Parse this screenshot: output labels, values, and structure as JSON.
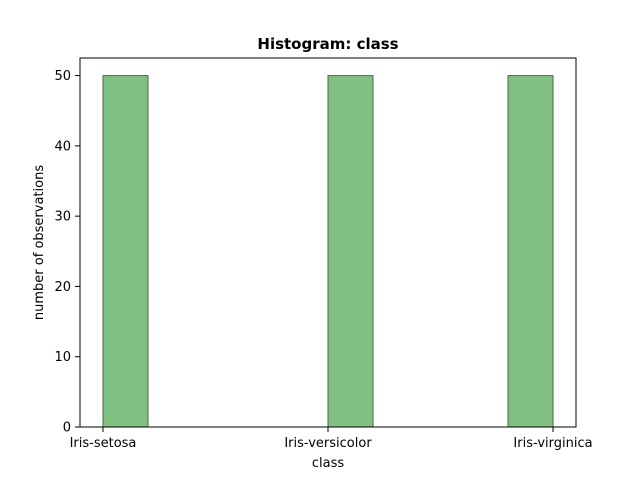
{
  "chart_data": {
    "type": "bar",
    "title": "Histogram: class",
    "xlabel": "class",
    "ylabel": "number of observations",
    "categories": [
      "Iris-setosa",
      "Iris-versicolor",
      "Iris-virginica"
    ],
    "values": [
      50,
      50,
      50
    ],
    "ylim": [
      0,
      52.5
    ],
    "yticks": [
      0,
      10,
      20,
      30,
      40,
      50
    ],
    "grid": false,
    "colors": {
      "bar_fill": "#80c080",
      "bar_edge": "#4a6a4a",
      "axis": "#000000"
    }
  }
}
